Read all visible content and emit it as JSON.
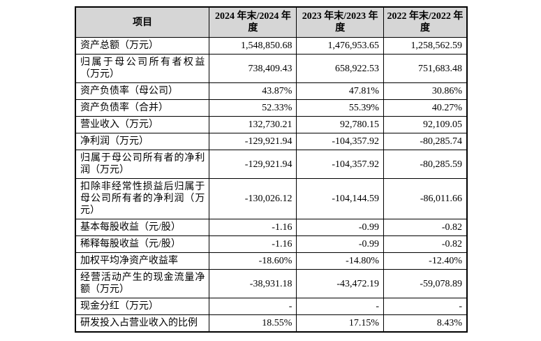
{
  "colors": {
    "header_bg": "#d6d6d6",
    "border": "#000000",
    "page_bg": "#ffffff"
  },
  "table": {
    "columns": [
      "项目",
      "2024 年末/2024 年度",
      "2023 年末/2023 年度",
      "2022 年末/2022 年度"
    ],
    "rows": [
      {
        "label": "资产总额（万元）",
        "values": [
          "1,548,850.68",
          "1,476,953.65",
          "1,258,562.59"
        ]
      },
      {
        "label": "归属于母公司所有者权益（万元）",
        "values": [
          "738,409.43",
          "658,922.53",
          "751,683.48"
        ]
      },
      {
        "label": "资产负债率（母公司）",
        "values": [
          "43.87%",
          "47.81%",
          "30.86%"
        ]
      },
      {
        "label": "资产负债率（合并）",
        "values": [
          "52.33%",
          "55.39%",
          "40.27%"
        ]
      },
      {
        "label": "营业收入（万元）",
        "values": [
          "132,730.21",
          "92,780.15",
          "92,109.05"
        ]
      },
      {
        "label": "净利润（万元）",
        "values": [
          "-129,921.94",
          "-104,357.92",
          "-80,285.74"
        ]
      },
      {
        "label": "归属于母公司所有者的净利润（万元）",
        "values": [
          "-129,921.94",
          "-104,357.92",
          "-80,285.59"
        ]
      },
      {
        "label": "扣除非经常性损益后归属于母公司所有者的净利润（万元）",
        "values": [
          "-130,026.12",
          "-104,144.59",
          "-86,011.66"
        ]
      },
      {
        "label": "基本每股收益（元/股）",
        "values": [
          "-1.16",
          "-0.99",
          "-0.82"
        ]
      },
      {
        "label": "稀释每股收益（元/股）",
        "values": [
          "-1.16",
          "-0.99",
          "-0.82"
        ]
      },
      {
        "label": "加权平均净资产收益率",
        "values": [
          "-18.60%",
          "-14.80%",
          "-12.40%"
        ]
      },
      {
        "label": "经营活动产生的现金流量净额（万元）",
        "values": [
          "-38,931.18",
          "-43,472.19",
          "-59,078.89"
        ]
      },
      {
        "label": "现金分红（万元）",
        "values": [
          "-",
          "-",
          "-"
        ]
      },
      {
        "label": "研发投入占营业收入的比例",
        "values": [
          "18.55%",
          "17.15%",
          "8.43%"
        ]
      }
    ]
  }
}
